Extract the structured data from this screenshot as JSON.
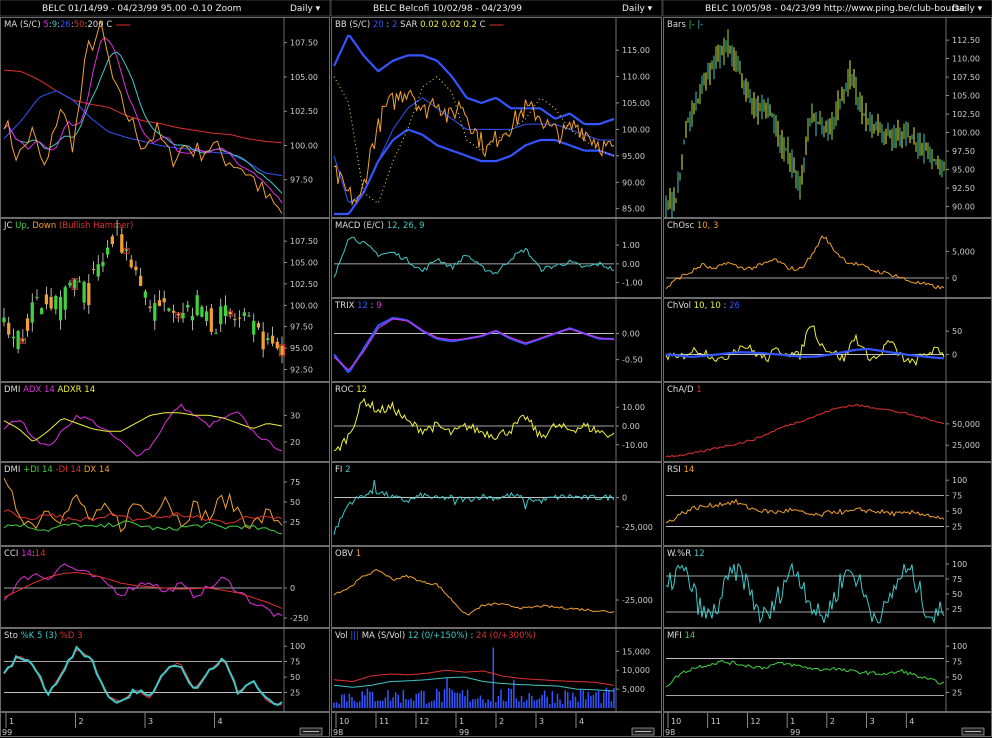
{
  "colors": {
    "bg": "#000000",
    "panel_border": "#888888",
    "header_bg": "#000000",
    "white": "#dddddd",
    "orange": "#f0a030",
    "red": "#e03030",
    "blue": "#3355ff",
    "cyan": "#40c8c8",
    "magenta": "#e030e0",
    "yellow": "#f0f040",
    "green": "#40d040",
    "ltgreen": "#a0e040"
  },
  "columns": [
    {
      "header": {
        "symbol": "BELC",
        "name": "",
        "range": "01/14/99 - 04/23/99",
        "last": "95.00",
        "change": "-0.10",
        "extra": "Zoom",
        "period": "Daily"
      },
      "xaxis": {
        "labels": [
          "1",
          "2",
          "3",
          "4"
        ],
        "year": "99"
      }
    },
    {
      "header": {
        "symbol": "BELC",
        "name": "Belcofi",
        "range": "10/02/98 - 04/23/99",
        "last": "",
        "change": "",
        "extra": "",
        "period": "Daily"
      },
      "xaxis": {
        "labels": [
          "10",
          "11",
          "12",
          "1",
          "2",
          "3",
          "4"
        ],
        "year_left": "98",
        "year_right": "99"
      }
    },
    {
      "header": {
        "symbol": "BELC",
        "name": "",
        "range": "10/05/98 - 04/23/99",
        "last": "",
        "change": "",
        "extra": "http://www.ping.be/club-bourse",
        "period": "Daily"
      },
      "xaxis": {
        "labels": [
          "10",
          "11",
          "12",
          "1",
          "2",
          "3",
          "4"
        ],
        "year_left": "98",
        "year_right": "99"
      }
    }
  ],
  "chart_data": [
    {
      "id": "c0p0",
      "type": "line",
      "legend": [
        {
          "t": "MA (S/C)",
          "c": "white"
        },
        {
          "t": " 5",
          "c": "magenta"
        },
        {
          "t": ":",
          "c": "white"
        },
        {
          "t": "9",
          "c": "cyan"
        },
        {
          "t": ":",
          "c": "white"
        },
        {
          "t": "26",
          "c": "blue"
        },
        {
          "t": ":",
          "c": "white"
        },
        {
          "t": "50",
          "c": "red"
        },
        {
          "t": ":",
          "c": "white"
        },
        {
          "t": "200",
          "c": "white"
        },
        {
          "t": "  C",
          "c": "white"
        }
      ],
      "legend_swatch": "red",
      "yticks": [
        "107.50",
        "105.00",
        "102.50",
        "100.00",
        "97.50"
      ],
      "ylim": [
        95.0,
        108.5
      ]
    },
    {
      "id": "c0p1",
      "type": "candlestick",
      "legend": [
        {
          "t": "JC ",
          "c": "white"
        },
        {
          "t": "Up",
          "c": "green"
        },
        {
          "t": ", ",
          "c": "white"
        },
        {
          "t": "Down",
          "c": "orange"
        },
        {
          "t": " (Bullish Hammer)",
          "c": "red"
        }
      ],
      "yticks": [
        "107.50",
        "105.00",
        "102.50",
        "100.00",
        "97.50",
        "95.00",
        "92.50"
      ],
      "ylim": [
        91.5,
        108.8
      ]
    },
    {
      "id": "c0p2",
      "type": "line",
      "legend": [
        {
          "t": "DMI ",
          "c": "white"
        },
        {
          "t": "ADX 14",
          "c": "magenta"
        },
        {
          "t": "  ",
          "c": "white"
        },
        {
          "t": "ADXR 14",
          "c": "yellow"
        }
      ],
      "yticks": [
        "30",
        "20"
      ],
      "ylim": [
        14,
        38
      ]
    },
    {
      "id": "c0p3",
      "type": "line",
      "legend": [
        {
          "t": "DMI ",
          "c": "white"
        },
        {
          "t": "+DI 14",
          "c": "green"
        },
        {
          "t": "  ",
          "c": "white"
        },
        {
          "t": "-DI 14",
          "c": "red"
        },
        {
          "t": "  ",
          "c": "white"
        },
        {
          "t": "DX 14",
          "c": "orange"
        }
      ],
      "yticks": [
        "75",
        "50",
        "25"
      ],
      "ylim": [
        0,
        85
      ]
    },
    {
      "id": "c0p4",
      "type": "line",
      "legend": [
        {
          "t": "CCI ",
          "c": "white"
        },
        {
          "t": "14",
          "c": "magenta"
        },
        {
          "t": ":",
          "c": "white"
        },
        {
          "t": "14",
          "c": "red"
        }
      ],
      "yticks": [
        "0",
        "-250"
      ],
      "ylim": [
        -300,
        250
      ]
    },
    {
      "id": "c0p5",
      "type": "line",
      "legend": [
        {
          "t": "Sto ",
          "c": "white"
        },
        {
          "t": "%K 5 (3)",
          "c": "cyan"
        },
        {
          "t": "  ",
          "c": "white"
        },
        {
          "t": "%D 3",
          "c": "red"
        }
      ],
      "yticks": [
        "100",
        "75",
        "50",
        "25"
      ],
      "ylim": [
        0,
        110
      ]
    },
    {
      "id": "c1p0",
      "type": "line",
      "legend": [
        {
          "t": "BB (S/C) ",
          "c": "white"
        },
        {
          "t": "20",
          "c": "blue"
        },
        {
          "t": " : ",
          "c": "white"
        },
        {
          "t": "2",
          "c": "blue"
        },
        {
          "t": "   SAR  ",
          "c": "white"
        },
        {
          "t": "0.02",
          "c": "yellow"
        },
        {
          "t": "  ",
          "c": "white"
        },
        {
          "t": "0.02",
          "c": "yellow"
        },
        {
          "t": "  ",
          "c": "white"
        },
        {
          "t": "0.2",
          "c": "yellow"
        },
        {
          "t": "    C",
          "c": "white"
        }
      ],
      "legend_swatch": "red",
      "yticks": [
        "115.00",
        "110.00",
        "105.00",
        "100.00",
        "95.00",
        "90.00",
        "85.00"
      ],
      "ylim": [
        84,
        119
      ]
    },
    {
      "id": "c1p1",
      "type": "line",
      "legend": [
        {
          "t": "MACD (E/C) ",
          "c": "white"
        },
        {
          "t": "12, 26, 9",
          "c": "cyan"
        }
      ],
      "yticks": [
        "1.00",
        "0.00",
        "-1.00"
      ],
      "ylim": [
        -1.6,
        1.8
      ]
    },
    {
      "id": "c1p2",
      "type": "line",
      "legend": [
        {
          "t": "TRIX ",
          "c": "white"
        },
        {
          "t": "12",
          "c": "blue"
        },
        {
          "t": " : ",
          "c": "white"
        },
        {
          "t": "9",
          "c": "magenta"
        }
      ],
      "yticks": [
        "0.00",
        "-0.50"
      ],
      "ylim": [
        -0.85,
        0.45
      ]
    },
    {
      "id": "c1p3",
      "type": "line",
      "legend": [
        {
          "t": "ROC ",
          "c": "white"
        },
        {
          "t": "12",
          "c": "yellow"
        }
      ],
      "yticks": [
        "10.00",
        "0.00",
        "-10.00"
      ],
      "ylim": [
        -17,
        17
      ]
    },
    {
      "id": "c1p4",
      "type": "line",
      "legend": [
        {
          "t": "FI ",
          "c": "white"
        },
        {
          "t": "2",
          "c": "cyan"
        }
      ],
      "yticks": [
        "0",
        "-25,000"
      ],
      "ylim": [
        -38000,
        20000
      ]
    },
    {
      "id": "c1p5",
      "type": "line",
      "legend": [
        {
          "t": "OBV ",
          "c": "white"
        },
        {
          "t": "1",
          "c": "orange"
        }
      ],
      "yticks": [
        "-25,000"
      ],
      "ylim": [
        -45000,
        10000
      ]
    },
    {
      "id": "c1p6",
      "type": "bar",
      "legend": [
        {
          "t": "Vol ",
          "c": "white"
        },
        {
          "t": "|||",
          "c": "blue"
        },
        {
          "t": "  MA (S/Vol) ",
          "c": "white"
        },
        {
          "t": "12 (0/+150%)",
          "c": "cyan"
        },
        {
          "t": " : ",
          "c": "white"
        },
        {
          "t": "24 (0/+300%)",
          "c": "red"
        }
      ],
      "yticks": [
        "15,000",
        "10,000",
        "5,000"
      ],
      "ylim": [
        0,
        18000
      ]
    },
    {
      "id": "c2p0",
      "type": "bar",
      "legend": [
        {
          "t": "Bars ",
          "c": "white"
        },
        {
          "t": "|-",
          "c": "green"
        },
        {
          "t": "  ",
          "c": "white"
        },
        {
          "t": "|-",
          "c": "cyan"
        }
      ],
      "yticks": [
        "112.50",
        "110.00",
        "107.50",
        "105.00",
        "102.50",
        "100.00",
        "97.50",
        "95.00",
        "92.50",
        "90.00"
      ],
      "ylim": [
        89,
        114
      ]
    },
    {
      "id": "c2p1",
      "type": "line",
      "legend": [
        {
          "t": "ChOsc ",
          "c": "white"
        },
        {
          "t": "10, 3",
          "c": "orange"
        }
      ],
      "yticks": [
        "5,000",
        "0"
      ],
      "ylim": [
        -3000,
        9000
      ]
    },
    {
      "id": "c2p2",
      "type": "line",
      "legend": [
        {
          "t": "ChVol ",
          "c": "white"
        },
        {
          "t": "10, 10",
          "c": "yellow"
        },
        {
          "t": " : ",
          "c": "white"
        },
        {
          "t": "26",
          "c": "blue"
        }
      ],
      "yticks": [
        "50",
        "0"
      ],
      "ylim": [
        -50,
        95
      ]
    },
    {
      "id": "c2p3",
      "type": "line",
      "legend": [
        {
          "t": "ChA/D ",
          "c": "white"
        },
        {
          "t": "1",
          "c": "red"
        }
      ],
      "yticks": [
        "50,000",
        "25,000"
      ],
      "ylim": [
        10000,
        85000
      ]
    },
    {
      "id": "c2p4",
      "type": "line",
      "legend": [
        {
          "t": "RSI ",
          "c": "white"
        },
        {
          "t": "14",
          "c": "orange"
        }
      ],
      "yticks": [
        "100",
        "75",
        "50",
        "25"
      ],
      "ylim": [
        0,
        110
      ]
    },
    {
      "id": "c2p5",
      "type": "line",
      "legend": [
        {
          "t": "W.%R ",
          "c": "white"
        },
        {
          "t": "12",
          "c": "cyan"
        }
      ],
      "yticks": [
        "100",
        "75",
        "50",
        "25"
      ],
      "ylim": [
        0,
        110
      ]
    },
    {
      "id": "c2p6",
      "type": "line",
      "legend": [
        {
          "t": "MFI ",
          "c": "white"
        },
        {
          "t": "14",
          "c": "green"
        }
      ],
      "yticks": [
        "100",
        "75",
        "50",
        "25"
      ],
      "ylim": [
        0,
        110
      ]
    }
  ]
}
